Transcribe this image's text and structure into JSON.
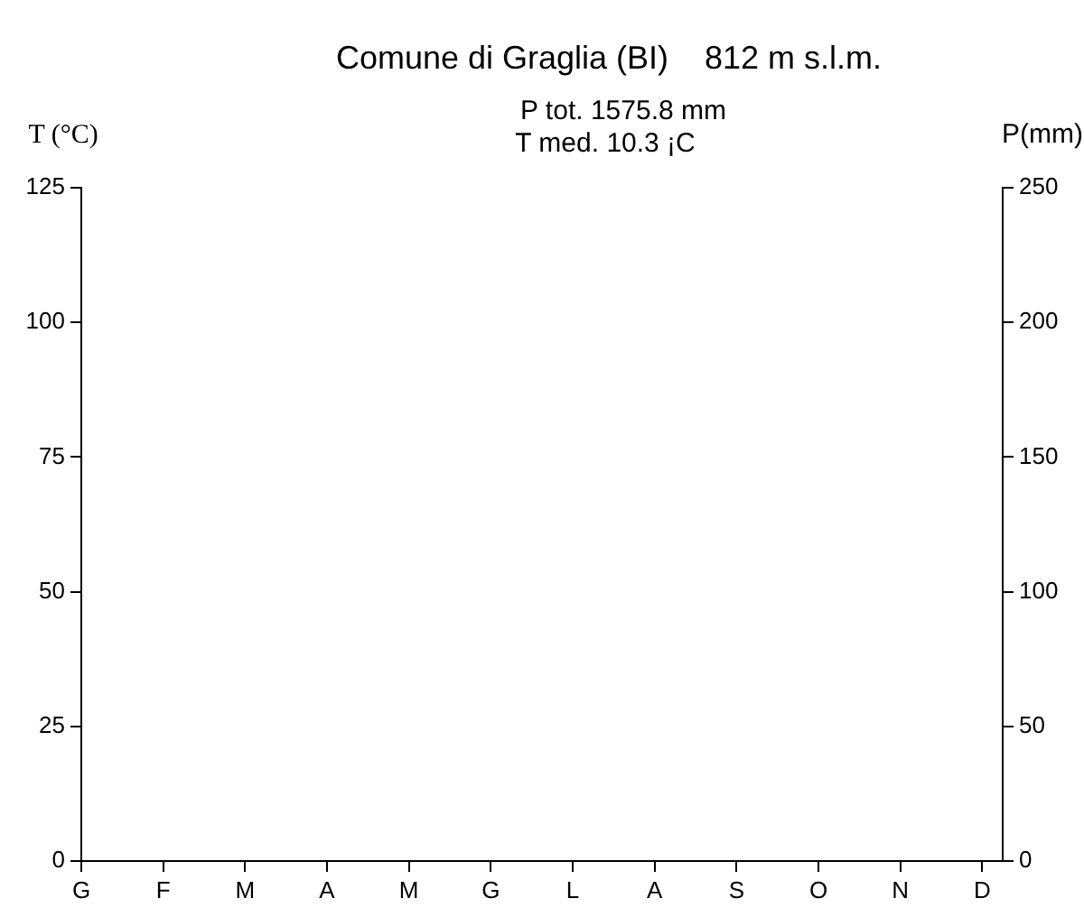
{
  "chart_data": {
    "type": "line",
    "title": "Comune di Graglia (BI)    812 m s.l.m.",
    "annotations": [
      "P tot. 1575.8 mm",
      "T med. 10.3 ¡C"
    ],
    "ylabel": "T (°C)",
    "y2label": "P(mm)",
    "categories": [
      "G",
      "F",
      "M",
      "A",
      "M",
      "G",
      "L",
      "A",
      "S",
      "O",
      "N",
      "D"
    ],
    "ylim": [
      0,
      125
    ],
    "yticks": [
      0,
      25,
      50,
      75,
      100,
      125
    ],
    "y2lim": [
      0,
      250
    ],
    "y2ticks": [
      0,
      50,
      100,
      150,
      200,
      250
    ],
    "legend": false,
    "grid": false
  }
}
